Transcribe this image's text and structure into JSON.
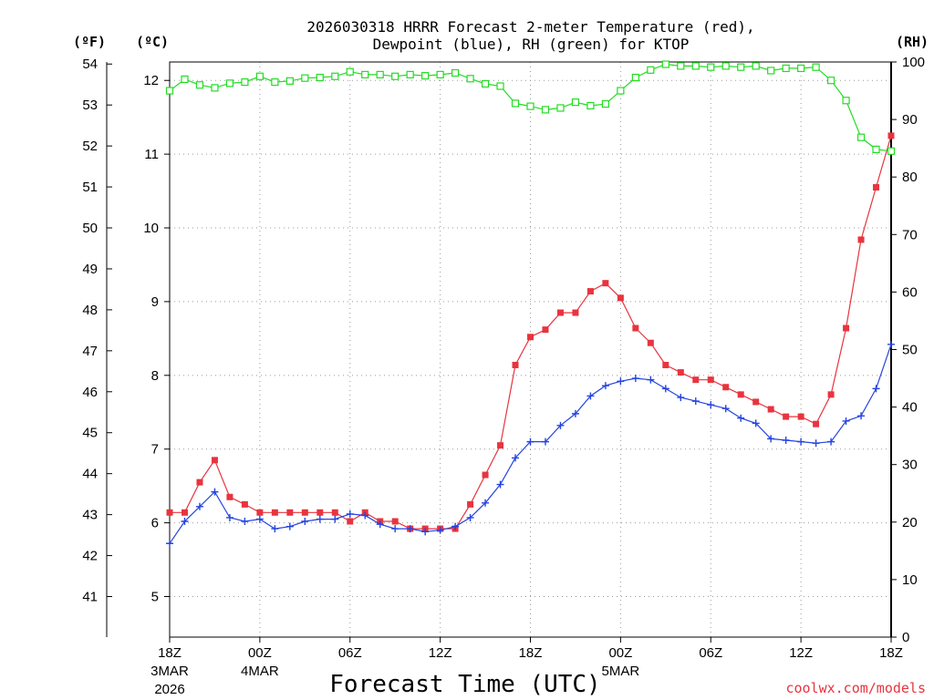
{
  "title_line1": "2026030318 HRRR Forecast 2-meter Temperature (red),",
  "title_line2": "Dewpoint (blue), RH (green) for KTOP",
  "unit_f": "(ºF)",
  "unit_c": "(ºC)",
  "unit_rh": "(RH)",
  "xlabel": "Forecast Time (UTC)",
  "credit": "coolwx.com/models",
  "x_ticks": [
    {
      "hour": 0,
      "label": "18Z",
      "sub1": "3MAR",
      "sub2": "2026"
    },
    {
      "hour": 6,
      "label": "00Z",
      "sub1": "4MAR",
      "sub2": ""
    },
    {
      "hour": 12,
      "label": "06Z",
      "sub1": "",
      "sub2": ""
    },
    {
      "hour": 18,
      "label": "12Z",
      "sub1": "",
      "sub2": ""
    },
    {
      "hour": 24,
      "label": "18Z",
      "sub1": "",
      "sub2": ""
    },
    {
      "hour": 30,
      "label": "00Z",
      "sub1": "5MAR",
      "sub2": ""
    },
    {
      "hour": 36,
      "label": "06Z",
      "sub1": "",
      "sub2": ""
    },
    {
      "hour": 42,
      "label": "12Z",
      "sub1": "",
      "sub2": ""
    },
    {
      "hour": 48,
      "label": "18Z",
      "sub1": "",
      "sub2": ""
    }
  ],
  "chart_data": {
    "type": "line",
    "title": "2026030318 HRRR Forecast 2-meter Temperature (red), Dewpoint (blue), RH (green) for KTOP",
    "xlabel": "Forecast Time (UTC)",
    "ylabel_left_c": "(ºC)",
    "ylabel_left_f": "(ºF)",
    "ylabel_right": "(RH)",
    "x_hours": [
      0,
      1,
      2,
      3,
      4,
      5,
      6,
      7,
      8,
      9,
      10,
      11,
      12,
      13,
      14,
      15,
      16,
      17,
      18,
      19,
      20,
      21,
      22,
      23,
      24,
      25,
      26,
      27,
      28,
      29,
      30,
      31,
      32,
      33,
      34,
      35,
      36,
      37,
      38,
      39,
      40,
      41,
      42,
      43,
      44,
      45,
      46,
      47,
      48
    ],
    "xlim": [
      0,
      48
    ],
    "ylim_c": [
      4.45,
      12.25
    ],
    "ylim_rh": [
      0,
      100
    ],
    "c_ticks": [
      5,
      6,
      7,
      8,
      9,
      10,
      11,
      12
    ],
    "f_ticks": [
      41,
      42,
      43,
      44,
      45,
      46,
      47,
      48,
      49,
      50,
      51,
      52,
      53,
      54
    ],
    "rh_ticks": [
      0,
      10,
      20,
      30,
      40,
      50,
      60,
      70,
      80,
      90,
      100
    ],
    "grid": true,
    "series": [
      {
        "name": "Temperature",
        "unit": "C",
        "color": "#e8343f",
        "marker": "filled-square",
        "values": [
          6.14,
          6.14,
          6.55,
          6.85,
          6.35,
          6.25,
          6.14,
          6.14,
          6.14,
          6.14,
          6.14,
          6.14,
          6.02,
          6.14,
          6.02,
          6.02,
          5.92,
          5.92,
          5.92,
          5.92,
          6.25,
          6.65,
          7.05,
          8.14,
          8.52,
          8.62,
          8.85,
          8.85,
          9.14,
          9.25,
          9.05,
          8.64,
          8.44,
          8.14,
          8.04,
          7.94,
          7.94,
          7.84,
          7.74,
          7.64,
          7.54,
          7.44,
          7.44,
          7.34,
          7.74,
          8.64,
          9.84,
          10.55,
          11.25
        ]
      },
      {
        "name": "Dewpoint",
        "unit": "C",
        "color": "#2543e0",
        "marker": "plus",
        "values": [
          5.72,
          6.02,
          6.22,
          6.42,
          6.07,
          6.02,
          6.05,
          5.92,
          5.95,
          6.02,
          6.05,
          6.05,
          6.12,
          6.1,
          5.98,
          5.92,
          5.92,
          5.88,
          5.9,
          5.95,
          6.07,
          6.27,
          6.52,
          6.88,
          7.1,
          7.1,
          7.32,
          7.48,
          7.72,
          7.86,
          7.92,
          7.96,
          7.94,
          7.82,
          7.7,
          7.65,
          7.6,
          7.55,
          7.42,
          7.35,
          7.14,
          7.12,
          7.1,
          7.08,
          7.1,
          7.38,
          7.45,
          7.82,
          8.42
        ]
      },
      {
        "name": "Relative Humidity",
        "unit": "%",
        "color": "#22dd22",
        "marker": "open-square",
        "values": [
          95,
          97,
          96,
          95.5,
          96.3,
          96.5,
          97.5,
          96.5,
          96.7,
          97.2,
          97.3,
          97.5,
          98.3,
          97.8,
          97.8,
          97.5,
          97.8,
          97.6,
          97.8,
          98.1,
          97.1,
          96.2,
          95.8,
          92.8,
          92.3,
          91.7,
          92,
          93,
          92.4,
          92.7,
          95,
          97.3,
          98.6,
          99.6,
          99.3,
          99.3,
          99.1,
          99.3,
          99.1,
          99.3,
          98.5,
          98.9,
          98.9,
          99.1,
          96.8,
          93.3,
          86.9,
          84.8,
          84.5
        ]
      }
    ]
  }
}
